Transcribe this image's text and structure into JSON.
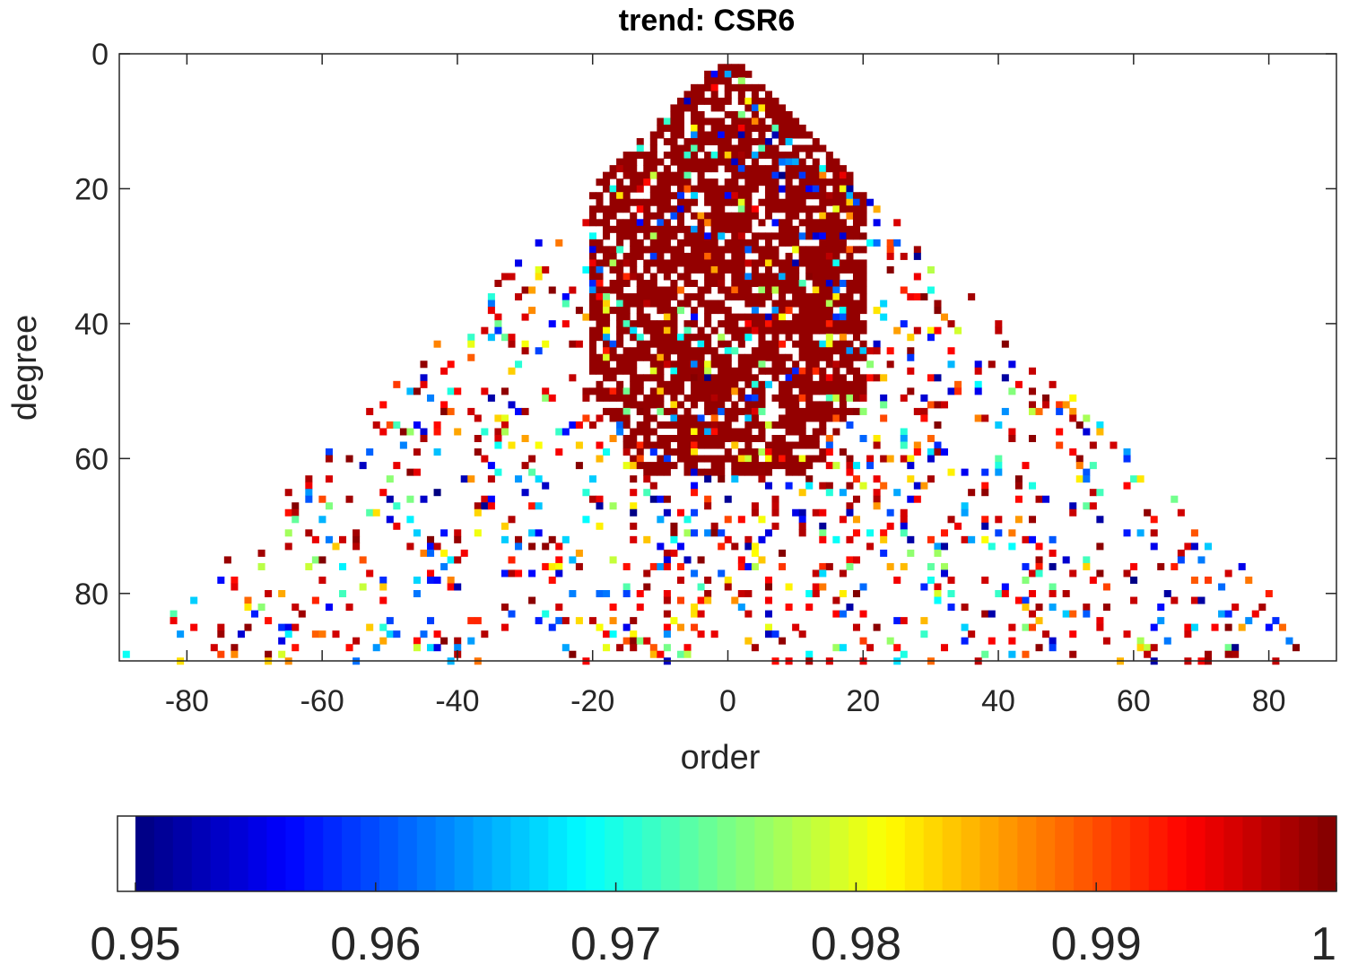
{
  "chart_data": {
    "type": "heatmap",
    "title": "trend: CSR6",
    "xlabel": "order",
    "ylabel": "degree",
    "xlim": [
      -90,
      90
    ],
    "ylim": [
      0,
      90
    ],
    "y_reversed": true,
    "x_ticks": [
      "-80",
      "-60",
      "-40",
      "-20",
      "0",
      "20",
      "40",
      "60",
      "80"
    ],
    "y_ticks": [
      "0",
      "20",
      "40",
      "60",
      "80"
    ],
    "colorbar": {
      "range": [
        0.95,
        1.0
      ],
      "ticks": [
        "0.95",
        "0.96",
        "0.97",
        "0.98",
        "0.99",
        "1"
      ],
      "colormap": "jet",
      "below_range_color": "#ffffff"
    },
    "description_of_values": "Per-coefficient values for spherical-harmonic orders m (-degree..degree) and degrees n (2..90); cells shown only where value >= 0.95. Dense dark-red (~1.0) core for degree < ~60 and |order| < ~20, sparse scattered values toward the triangle edges.",
    "value_profile": {
      "core_value": 0.999,
      "core_max_degree": 62,
      "core_half_width_order": 20,
      "max_degree": 90,
      "min_degree": 2
    }
  }
}
